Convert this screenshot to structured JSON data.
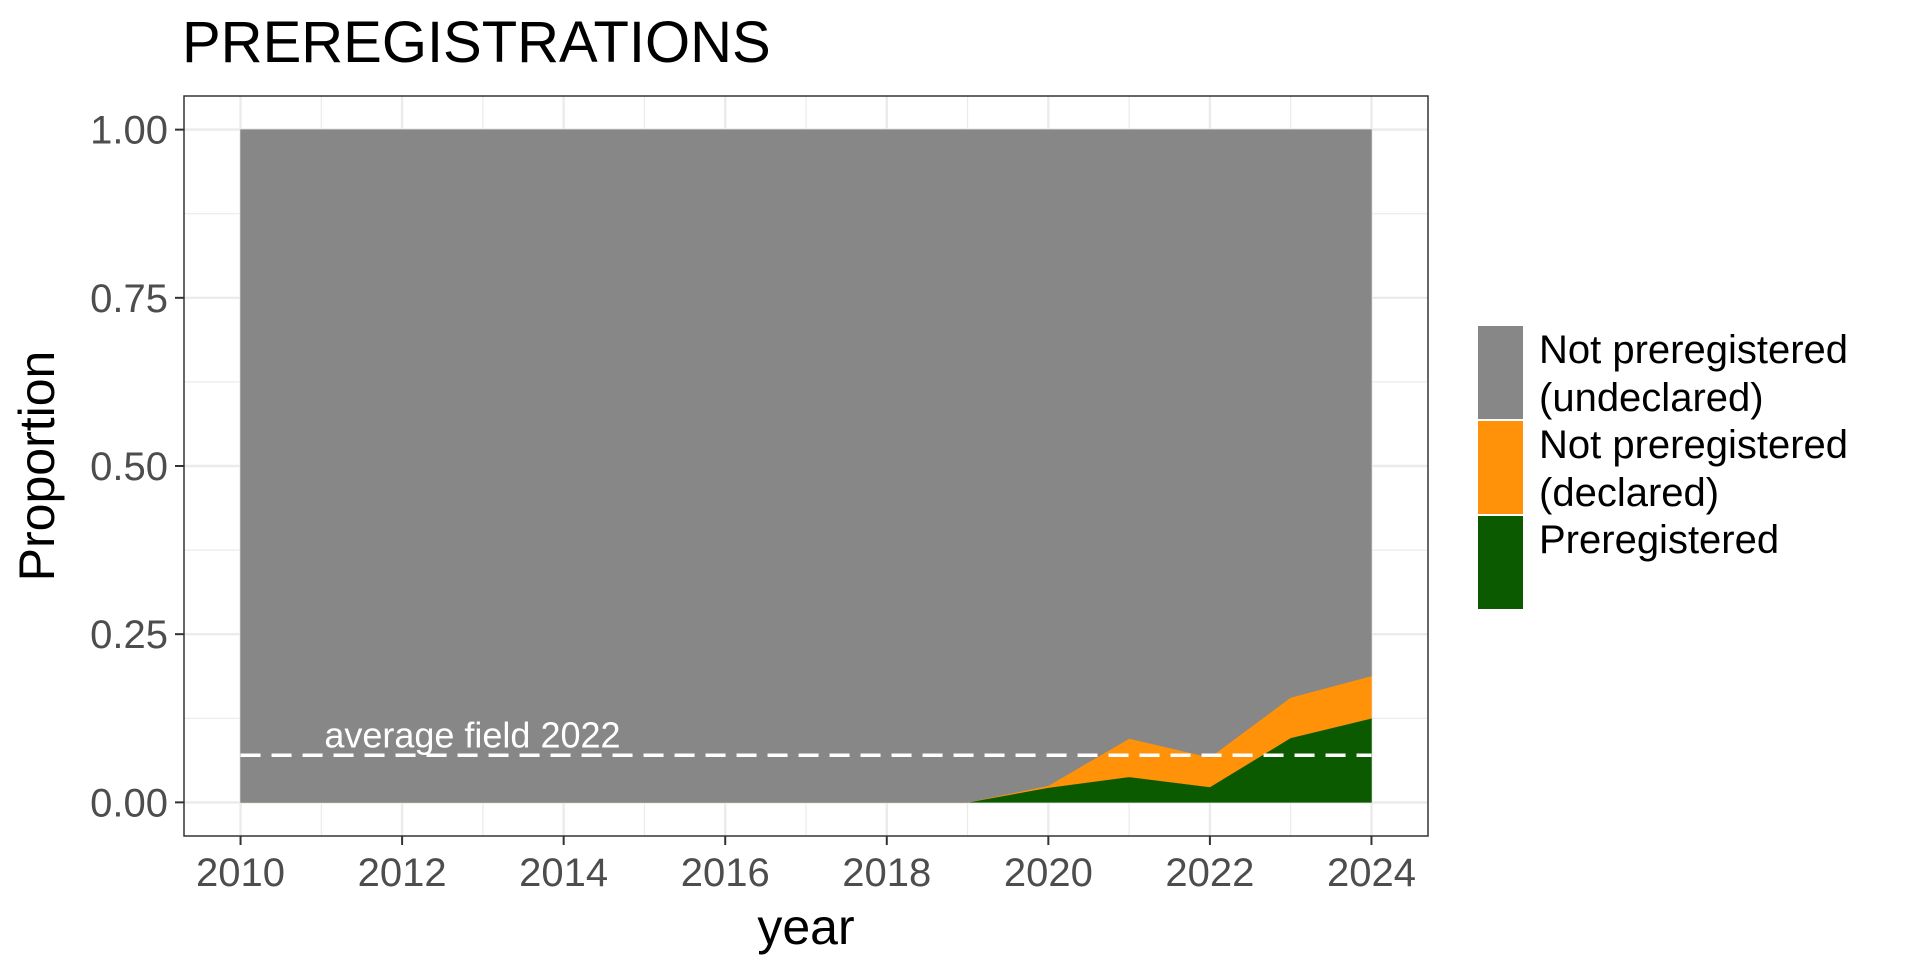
{
  "chart_data": {
    "type": "area",
    "title": "PREREGISTRATIONS",
    "xlabel": "year",
    "ylabel": "Proportion",
    "xlim": [
      2009.3,
      2024.7
    ],
    "ylim": [
      -0.05,
      1.05
    ],
    "x_ticks": [
      2010,
      2012,
      2014,
      2016,
      2018,
      2020,
      2022,
      2024
    ],
    "x_tick_labels": [
      "2010",
      "2012",
      "2014",
      "2016",
      "2018",
      "2020",
      "2022",
      "2024"
    ],
    "y_ticks": [
      0,
      0.25,
      0.5,
      0.75,
      1.0
    ],
    "y_tick_labels": [
      "0.00",
      "0.25",
      "0.50",
      "0.75",
      "1.00"
    ],
    "grid": true,
    "stacked": true,
    "legend_position": "right",
    "x": [
      2010,
      2011,
      2012,
      2013,
      2014,
      2015,
      2016,
      2017,
      2018,
      2019,
      2020,
      2021,
      2022,
      2023,
      2024
    ],
    "series": [
      {
        "name": "Preregistered",
        "color": "#0b5a00",
        "values": [
          0,
          0,
          0,
          0,
          0,
          0,
          0,
          0,
          0,
          0,
          0.022,
          0.038,
          0.023,
          0.096,
          0.125
        ]
      },
      {
        "name": "Not preregistered (declared)",
        "color": "#ff9208",
        "values": [
          0,
          0,
          0,
          0,
          0,
          0,
          0,
          0,
          0,
          0,
          0.003,
          0.057,
          0.044,
          0.06,
          0.063
        ]
      },
      {
        "name": "Not preregistered (undeclared)",
        "color": "#878787",
        "values": [
          1,
          1,
          1,
          1,
          1,
          1,
          1,
          1,
          1,
          1,
          0.975,
          0.905,
          0.933,
          0.844,
          0.812
        ]
      }
    ],
    "legend": [
      {
        "line1": "Not preregistered",
        "line2": "(undeclared)",
        "color": "#878787"
      },
      {
        "line1": "Not preregistered",
        "line2": "(declared)",
        "color": "#ff9208"
      },
      {
        "line1": "Preregistered",
        "line2": "",
        "color": "#0b5a00"
      }
    ],
    "annotations": [
      {
        "type": "hline",
        "y": 0.07,
        "style": "dashed",
        "color": "#ffffff",
        "x_from": 2010,
        "x_to": 2024
      },
      {
        "type": "text",
        "text": "average field 2022",
        "x": 2011,
        "y": 0.07,
        "color": "#ffffff"
      }
    ]
  }
}
